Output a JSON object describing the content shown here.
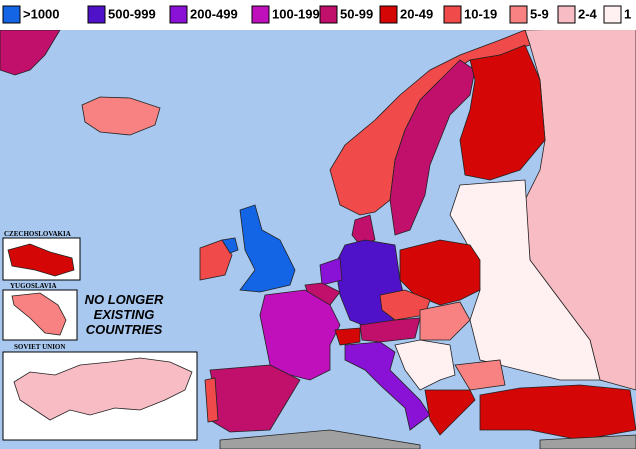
{
  "legend": [
    {
      "label": ">1000",
      "color": "#1464e6"
    },
    {
      "label": "500-999",
      "color": "#5012c8"
    },
    {
      "label": "200-499",
      "color": "#8a12d6"
    },
    {
      "label": "100-199",
      "color": "#c010bc"
    },
    {
      "label": "50-99",
      "color": "#c0106c"
    },
    {
      "label": "20-49",
      "color": "#d40606"
    },
    {
      "label": "10-19",
      "color": "#f04a4a"
    },
    {
      "label": "5-9",
      "color": "#f88282"
    },
    {
      "label": "2-4",
      "color": "#f8bcc4"
    },
    {
      "label": "1",
      "color": "#fff0f2"
    }
  ],
  "insets": [
    {
      "label": "CZECHOSLOVAKIA"
    },
    {
      "label": "YUGOSLAVIA"
    },
    {
      "label": "SOVIET UNION"
    }
  ],
  "annotation": [
    "NO LONGER",
    "EXISTING",
    "COUNTRIES"
  ]
}
